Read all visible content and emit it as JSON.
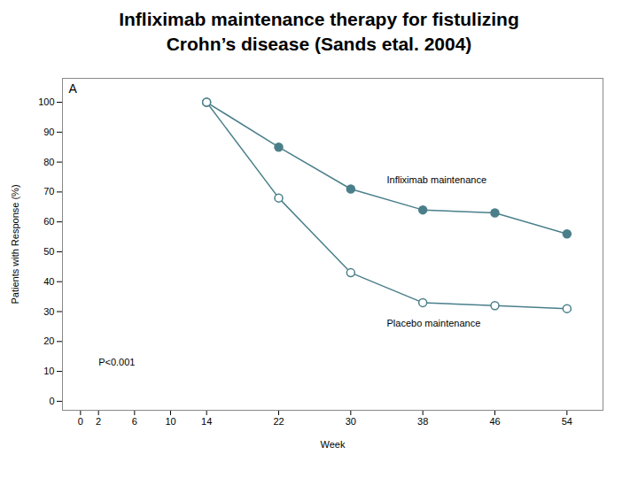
{
  "chart_data": {
    "type": "line",
    "title": "Infliximab maintenance therapy for fistulizing",
    "subtitle": "Crohn’s disease (Sands etal. 2004)",
    "x_label": "Week",
    "y_label": "Patients with Response (%)",
    "x": [
      14,
      22,
      30,
      38,
      46,
      54
    ],
    "series": [
      {
        "name": "Infliximab maintenance",
        "color": "#4a7f8a",
        "marker": "circle",
        "values": [
          100,
          85,
          71,
          64,
          63,
          56
        ]
      },
      {
        "name": "Placebo maintenance",
        "color": "#4a7f8a",
        "marker": "circle-open",
        "values": [
          100,
          68,
          43,
          33,
          32,
          31
        ]
      }
    ],
    "xlim": [
      -2,
      58
    ],
    "xticks": [
      0,
      2,
      6,
      10,
      14,
      22,
      30,
      38,
      46,
      54
    ],
    "ylim": [
      -3,
      108
    ],
    "yticks": [
      0,
      10,
      20,
      30,
      40,
      50,
      60,
      70,
      80,
      90,
      100
    ],
    "annotations": [
      {
        "text": "P<0.001",
        "x": 2,
        "y": 12
      },
      {
        "text": "Infliximab maintenance",
        "x": 34,
        "y": 73
      },
      {
        "text": "Placebo maintenance",
        "x": 34,
        "y": 25
      },
      {
        "text": "A"
      }
    ],
    "grid": false
  }
}
